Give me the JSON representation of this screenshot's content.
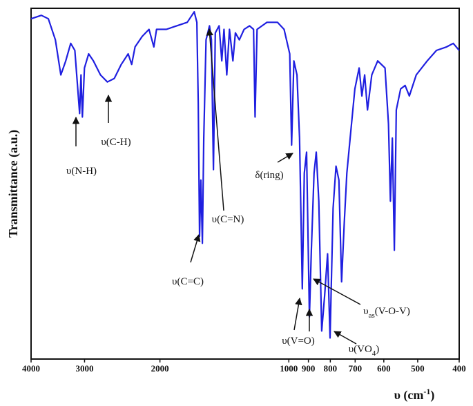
{
  "chart_data": {
    "type": "line",
    "y_label": "Transmittance (a.u.)",
    "x_label": [
      "υ (cm",
      "-1",
      ")"
    ],
    "log_x": true,
    "xlim": [
      4000,
      400
    ],
    "ylim": [
      0,
      100
    ],
    "xticks": [
      4000,
      3000,
      2000,
      1000,
      900,
      800,
      700,
      600,
      500,
      400
    ],
    "series": [
      {
        "color": "#1f1fe0",
        "x": [
          4000,
          3785,
          3645,
          3510,
          3408,
          3320,
          3232,
          3161,
          3081,
          3058,
          3035,
          3002,
          2935,
          2860,
          2754,
          2654,
          2557,
          2463,
          2373,
          2328,
          2286,
          2200,
          2121,
          2067,
          2037,
          1932,
          1828,
          1727,
          1663,
          1640,
          1628,
          1616,
          1605,
          1592,
          1580,
          1561,
          1532,
          1516,
          1500,
          1485,
          1455,
          1434,
          1417,
          1396,
          1376,
          1351,
          1333,
          1305,
          1272,
          1235,
          1209,
          1199,
          1186,
          1125,
          1063,
          1026,
          995,
          985,
          973,
          957,
          944,
          930,
          920,
          909,
          895,
          886,
          873,
          863,
          851,
          838,
          825,
          812,
          801,
          788,
          776,
          764,
          753,
          742,
          732,
          719,
          701,
          685,
          675,
          665,
          655,
          640,
          620,
          596,
          585,
          579,
          573,
          567,
          561,
          548,
          535,
          523,
          504,
          475,
          452,
          428,
          413,
          400
        ],
        "values": [
          97,
          98,
          97,
          91,
          81,
          85,
          90,
          88,
          70,
          81,
          69,
          83,
          87,
          85,
          81,
          79,
          80,
          84,
          87,
          84,
          89,
          92,
          94,
          89,
          94,
          94,
          95,
          96,
          99,
          96,
          73,
          35,
          51,
          33,
          63,
          91,
          95,
          91,
          54,
          93,
          95,
          85,
          94,
          81,
          94,
          85,
          93,
          91,
          94,
          95,
          94,
          69,
          94,
          96,
          96,
          94,
          87,
          61,
          85,
          81,
          63,
          20,
          53,
          59,
          12,
          31,
          53,
          59,
          45,
          8,
          18,
          30,
          6,
          43,
          55,
          51,
          22,
          39,
          53,
          63,
          77,
          83,
          75,
          81,
          71,
          81,
          85,
          83,
          67,
          45,
          63,
          31,
          71,
          77,
          78,
          75,
          81,
          85,
          88,
          89,
          90,
          88
        ]
      }
    ],
    "annotations": [
      {
        "text": [
          "υ(N-H)"
        ]
      },
      {
        "text": [
          "υ(C-H)"
        ]
      },
      {
        "text": [
          "υ(C=C)"
        ]
      },
      {
        "text": [
          "υ(C=N)"
        ]
      },
      {
        "text": [
          "δ(ring)"
        ]
      },
      {
        "text": [
          "υ(V=O)"
        ]
      },
      {
        "text": [
          "υ",
          "as",
          "(V-O-V)"
        ]
      },
      {
        "text": [
          "υ(VO",
          "4",
          ")"
        ]
      }
    ]
  }
}
